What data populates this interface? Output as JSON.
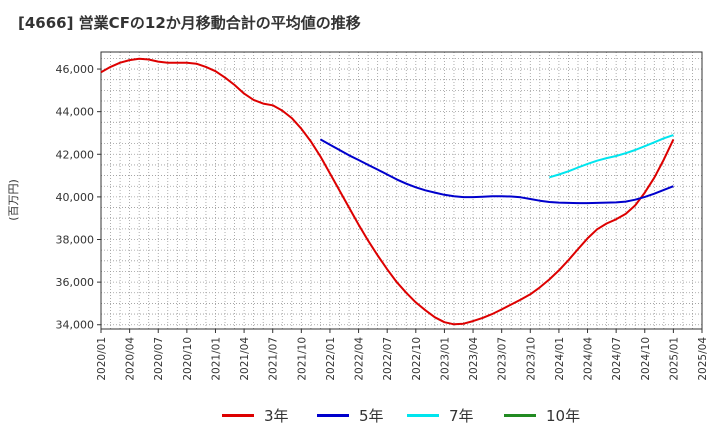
{
  "chart_data": {
    "type": "line",
    "title": "[4666]  営業CFの12か月移動合計の平均値の推移",
    "ylabel": "(百万円)",
    "xlabel": "",
    "ylim": [
      33800,
      46800
    ],
    "yticks": [
      34000,
      36000,
      38000,
      40000,
      42000,
      44000,
      46000
    ],
    "ytick_labels": [
      "34,000",
      "36,000",
      "38,000",
      "40,000",
      "42,000",
      "44,000",
      "46,000"
    ],
    "xlim": [
      "2020-01",
      "2025-04"
    ],
    "xtick_labels": [
      "2020/01",
      "2020/04",
      "2020/07",
      "2020/10",
      "2021/01",
      "2021/04",
      "2021/07",
      "2021/10",
      "2022/01",
      "2022/04",
      "2022/07",
      "2022/10",
      "2023/01",
      "2023/04",
      "2023/07",
      "2023/10",
      "2024/01",
      "2024/04",
      "2024/07",
      "2024/10",
      "2025/01",
      "2025/04"
    ],
    "grid": true,
    "legend_position": "bottom",
    "series": [
      {
        "name": "3年",
        "color": "#dd0000",
        "points": [
          [
            "2020-01",
            45850
          ],
          [
            "2020-02",
            46100
          ],
          [
            "2020-03",
            46300
          ],
          [
            "2020-04",
            46420
          ],
          [
            "2020-05",
            46480
          ],
          [
            "2020-06",
            46450
          ],
          [
            "2020-07",
            46350
          ],
          [
            "2020-08",
            46300
          ],
          [
            "2020-09",
            46300
          ],
          [
            "2020-10",
            46300
          ],
          [
            "2020-11",
            46250
          ],
          [
            "2020-12",
            46100
          ],
          [
            "2021-01",
            45900
          ],
          [
            "2021-02",
            45600
          ],
          [
            "2021-03",
            45250
          ],
          [
            "2021-04",
            44850
          ],
          [
            "2021-05",
            44550
          ],
          [
            "2021-06",
            44380
          ],
          [
            "2021-07",
            44300
          ],
          [
            "2021-08",
            44050
          ],
          [
            "2021-09",
            43700
          ],
          [
            "2021-10",
            43200
          ],
          [
            "2021-11",
            42600
          ],
          [
            "2021-12",
            41900
          ],
          [
            "2022-01",
            41100
          ],
          [
            "2022-02",
            40300
          ],
          [
            "2022-03",
            39500
          ],
          [
            "2022-04",
            38700
          ],
          [
            "2022-05",
            37950
          ],
          [
            "2022-06",
            37250
          ],
          [
            "2022-07",
            36600
          ],
          [
            "2022-08",
            36000
          ],
          [
            "2022-09",
            35500
          ],
          [
            "2022-10",
            35050
          ],
          [
            "2022-11",
            34680
          ],
          [
            "2022-12",
            34350
          ],
          [
            "2023-01",
            34120
          ],
          [
            "2023-02",
            34020
          ],
          [
            "2023-03",
            34050
          ],
          [
            "2023-04",
            34170
          ],
          [
            "2023-05",
            34320
          ],
          [
            "2023-06",
            34500
          ],
          [
            "2023-07",
            34720
          ],
          [
            "2023-08",
            34950
          ],
          [
            "2023-09",
            35180
          ],
          [
            "2023-10",
            35430
          ],
          [
            "2023-11",
            35750
          ],
          [
            "2023-12",
            36130
          ],
          [
            "2024-01",
            36550
          ],
          [
            "2024-02",
            37030
          ],
          [
            "2024-03",
            37550
          ],
          [
            "2024-04",
            38050
          ],
          [
            "2024-05",
            38480
          ],
          [
            "2024-06",
            38750
          ],
          [
            "2024-07",
            38950
          ],
          [
            "2024-08",
            39200
          ],
          [
            "2024-09",
            39600
          ],
          [
            "2024-10",
            40200
          ],
          [
            "2024-11",
            40900
          ],
          [
            "2024-12",
            41750
          ],
          [
            "2025-01",
            42700
          ]
        ]
      },
      {
        "name": "5年",
        "color": "#0000cc",
        "points": [
          [
            "2021-12",
            42700
          ],
          [
            "2022-01",
            42450
          ],
          [
            "2022-02",
            42200
          ],
          [
            "2022-03",
            41950
          ],
          [
            "2022-04",
            41730
          ],
          [
            "2022-05",
            41500
          ],
          [
            "2022-06",
            41280
          ],
          [
            "2022-07",
            41050
          ],
          [
            "2022-08",
            40820
          ],
          [
            "2022-09",
            40620
          ],
          [
            "2022-10",
            40450
          ],
          [
            "2022-11",
            40310
          ],
          [
            "2022-12",
            40200
          ],
          [
            "2023-01",
            40100
          ],
          [
            "2023-02",
            40030
          ],
          [
            "2023-03",
            39990
          ],
          [
            "2023-04",
            39990
          ],
          [
            "2023-05",
            40010
          ],
          [
            "2023-06",
            40030
          ],
          [
            "2023-07",
            40030
          ],
          [
            "2023-08",
            40020
          ],
          [
            "2023-09",
            39980
          ],
          [
            "2023-10",
            39900
          ],
          [
            "2023-11",
            39820
          ],
          [
            "2023-12",
            39760
          ],
          [
            "2024-01",
            39730
          ],
          [
            "2024-02",
            39720
          ],
          [
            "2024-03",
            39710
          ],
          [
            "2024-04",
            39710
          ],
          [
            "2024-05",
            39720
          ],
          [
            "2024-06",
            39730
          ],
          [
            "2024-07",
            39740
          ],
          [
            "2024-08",
            39780
          ],
          [
            "2024-09",
            39870
          ],
          [
            "2024-10",
            40000
          ],
          [
            "2024-11",
            40150
          ],
          [
            "2024-12",
            40330
          ],
          [
            "2025-01",
            40500
          ]
        ]
      },
      {
        "name": "7年",
        "color": "#00e5ee",
        "points": [
          [
            "2023-12",
            40920
          ],
          [
            "2024-01",
            41050
          ],
          [
            "2024-02",
            41200
          ],
          [
            "2024-03",
            41380
          ],
          [
            "2024-04",
            41550
          ],
          [
            "2024-05",
            41700
          ],
          [
            "2024-06",
            41820
          ],
          [
            "2024-07",
            41920
          ],
          [
            "2024-08",
            42050
          ],
          [
            "2024-09",
            42200
          ],
          [
            "2024-10",
            42380
          ],
          [
            "2024-11",
            42560
          ],
          [
            "2024-12",
            42750
          ],
          [
            "2025-01",
            42900
          ]
        ]
      },
      {
        "name": "10年",
        "color": "#228b22",
        "points": []
      }
    ]
  }
}
